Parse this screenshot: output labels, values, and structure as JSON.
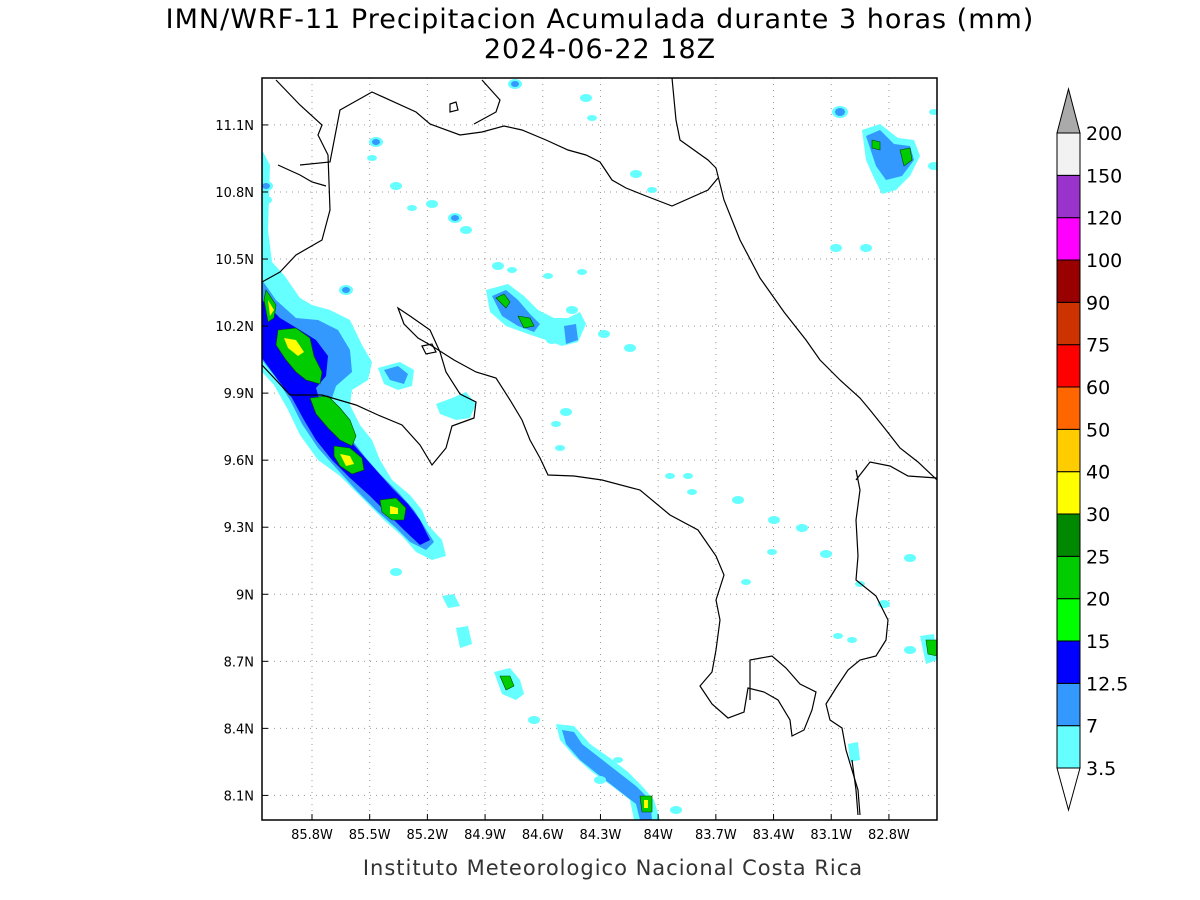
{
  "title_line1": "IMN/WRF-11 Precipitacion Acumulada durante 3 horas (mm)",
  "title_line2": "2024-06-22 18Z",
  "credit": "Instituto Meteorologico Nacional Costa Rica",
  "map": {
    "lon_range": [
      -86.06,
      -82.55
    ],
    "lat_range": [
      7.99,
      11.31
    ],
    "lon_ticks": [
      {
        "value": -85.8,
        "label": "85.8W"
      },
      {
        "value": -85.5,
        "label": "85.5W"
      },
      {
        "value": -85.2,
        "label": "85.2W"
      },
      {
        "value": -84.9,
        "label": "84.9W"
      },
      {
        "value": -84.6,
        "label": "84.6W"
      },
      {
        "value": -84.3,
        "label": "84.3W"
      },
      {
        "value": -84.0,
        "label": "84W"
      },
      {
        "value": -83.7,
        "label": "83.7W"
      },
      {
        "value": -83.4,
        "label": "83.4W"
      },
      {
        "value": -83.1,
        "label": "83.1W"
      },
      {
        "value": -82.8,
        "label": "82.8W"
      }
    ],
    "lat_ticks": [
      {
        "value": 11.1,
        "label": "11.1N"
      },
      {
        "value": 10.8,
        "label": "10.8N"
      },
      {
        "value": 10.5,
        "label": "10.5N"
      },
      {
        "value": 10.2,
        "label": "10.2N"
      },
      {
        "value": 9.9,
        "label": "9.9N"
      },
      {
        "value": 9.6,
        "label": "9.6N"
      },
      {
        "value": 9.3,
        "label": "9.3N"
      },
      {
        "value": 9.0,
        "label": "9N"
      },
      {
        "value": 8.7,
        "label": "8.7N"
      },
      {
        "value": 8.4,
        "label": "8.4N"
      },
      {
        "value": 8.1,
        "label": "8.1N"
      }
    ],
    "grid": "dotted"
  },
  "colorbar": {
    "levels": [
      "3.5",
      "7",
      "12.5",
      "15",
      "20",
      "25",
      "30",
      "40",
      "50",
      "60",
      "75",
      "90",
      "100",
      "120",
      "150",
      "200"
    ],
    "colors": [
      "#66ffff",
      "#3399ff",
      "#0000ff",
      "#00ff00",
      "#00cc00",
      "#008800",
      "#ffff00",
      "#ffcc00",
      "#ff6600",
      "#ff0000",
      "#cc3300",
      "#990000",
      "#ff00ff",
      "#9933cc",
      "#f2f2f2"
    ],
    "over_color": "#aaaaaa",
    "under_color": "#ffffff"
  },
  "colors": {
    "light": "#66ffff",
    "mid": "#3399ff",
    "blue": "#0000ff",
    "green": "#00ff00",
    "dgreen": "#00cc00",
    "yellow": "#ffff00"
  }
}
